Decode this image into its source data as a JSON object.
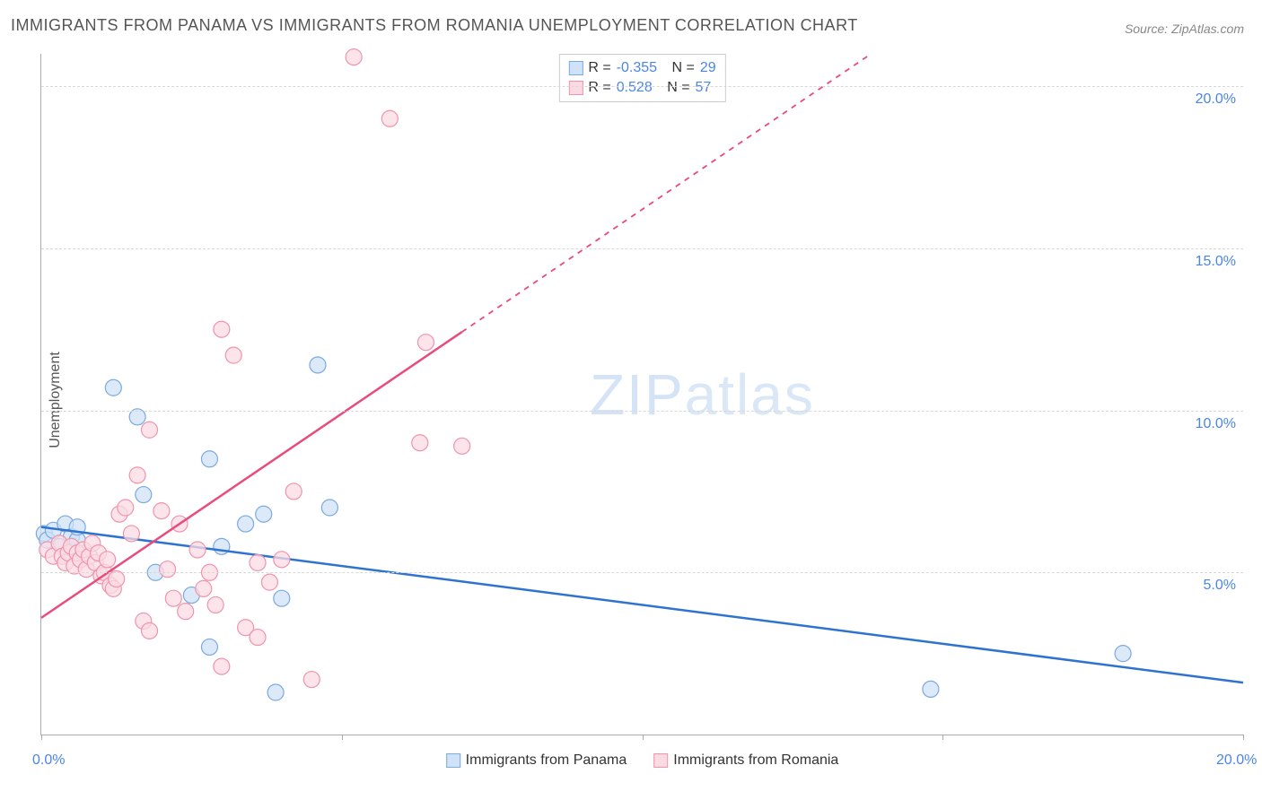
{
  "title": "IMMIGRANTS FROM PANAMA VS IMMIGRANTS FROM ROMANIA UNEMPLOYMENT CORRELATION CHART",
  "source": "Source: ZipAtlas.com",
  "ylabel": "Unemployment",
  "watermark_zip": "ZIP",
  "watermark_atlas": "atlas",
  "chart": {
    "type": "scatter",
    "xlim": [
      0,
      20
    ],
    "ylim": [
      0,
      21
    ],
    "xticks": [
      0,
      5,
      10,
      15,
      20
    ],
    "xtick_labels": [
      "0.0%",
      "",
      "",
      "",
      "20.0%"
    ],
    "yticks": [
      5,
      10,
      15,
      20
    ],
    "ytick_labels": [
      "5.0%",
      "10.0%",
      "15.0%",
      "20.0%"
    ],
    "grid_color": "#d8d8d8",
    "background_color": "#ffffff",
    "series": [
      {
        "name": "Immigrants from Panama",
        "marker_fill": "#cfe2f7",
        "marker_stroke": "#7ba9e0",
        "line_color": "#2f73d1",
        "swatch_fill": "#cfe2f7",
        "swatch_stroke": "#7ba9e0",
        "marker_radius": 9,
        "R": "-0.355",
        "N": "29",
        "trend": {
          "x1": 0,
          "y1": 6.4,
          "x2": 20,
          "y2": 1.6
        },
        "points": [
          [
            0.05,
            6.2
          ],
          [
            0.1,
            6.0
          ],
          [
            0.2,
            6.3
          ],
          [
            0.3,
            5.8
          ],
          [
            0.4,
            6.5
          ],
          [
            0.5,
            6.1
          ],
          [
            0.6,
            6.0
          ],
          [
            0.6,
            6.4
          ],
          [
            1.2,
            10.7
          ],
          [
            1.6,
            9.8
          ],
          [
            1.7,
            7.4
          ],
          [
            1.9,
            5.0
          ],
          [
            2.5,
            4.3
          ],
          [
            2.8,
            8.5
          ],
          [
            2.8,
            2.7
          ],
          [
            3.0,
            5.8
          ],
          [
            3.4,
            6.5
          ],
          [
            3.7,
            6.8
          ],
          [
            3.9,
            1.3
          ],
          [
            4.0,
            4.2
          ],
          [
            4.6,
            11.4
          ],
          [
            4.8,
            7.0
          ],
          [
            14.8,
            1.4
          ],
          [
            18.0,
            2.5
          ]
        ]
      },
      {
        "name": "Immigrants from Romania",
        "marker_fill": "#fbdbe3",
        "marker_stroke": "#ef94ac",
        "line_color": "#e94b7b",
        "swatch_fill": "#fbdbe3",
        "swatch_stroke": "#ef94ac",
        "marker_radius": 9,
        "R": "0.528",
        "N": "57",
        "trend": {
          "x1": 0,
          "y1": 3.6,
          "x2": 20,
          "y2": 28.8
        },
        "points": [
          [
            0.1,
            5.7
          ],
          [
            0.2,
            5.5
          ],
          [
            0.3,
            5.9
          ],
          [
            0.35,
            5.5
          ],
          [
            0.4,
            5.3
          ],
          [
            0.45,
            5.6
          ],
          [
            0.5,
            5.8
          ],
          [
            0.55,
            5.2
          ],
          [
            0.6,
            5.6
          ],
          [
            0.65,
            5.4
          ],
          [
            0.7,
            5.7
          ],
          [
            0.75,
            5.1
          ],
          [
            0.8,
            5.5
          ],
          [
            0.85,
            5.9
          ],
          [
            0.9,
            5.3
          ],
          [
            0.95,
            5.6
          ],
          [
            1.0,
            4.9
          ],
          [
            1.05,
            5.0
          ],
          [
            1.1,
            5.4
          ],
          [
            1.15,
            4.6
          ],
          [
            1.2,
            4.5
          ],
          [
            1.25,
            4.8
          ],
          [
            1.3,
            6.8
          ],
          [
            1.4,
            7.0
          ],
          [
            1.5,
            6.2
          ],
          [
            1.6,
            8.0
          ],
          [
            1.7,
            3.5
          ],
          [
            1.8,
            3.2
          ],
          [
            1.8,
            9.4
          ],
          [
            2.0,
            6.9
          ],
          [
            2.1,
            5.1
          ],
          [
            2.2,
            4.2
          ],
          [
            2.3,
            6.5
          ],
          [
            2.4,
            3.8
          ],
          [
            2.6,
            5.7
          ],
          [
            2.7,
            4.5
          ],
          [
            2.8,
            5.0
          ],
          [
            2.9,
            4.0
          ],
          [
            3.0,
            2.1
          ],
          [
            3.0,
            12.5
          ],
          [
            3.2,
            11.7
          ],
          [
            3.4,
            3.3
          ],
          [
            3.6,
            5.3
          ],
          [
            3.6,
            3.0
          ],
          [
            3.8,
            4.7
          ],
          [
            4.0,
            5.4
          ],
          [
            4.2,
            7.5
          ],
          [
            4.5,
            1.7
          ],
          [
            5.2,
            20.9
          ],
          [
            5.8,
            19.0
          ],
          [
            6.3,
            9.0
          ],
          [
            6.4,
            12.1
          ],
          [
            7.0,
            8.9
          ]
        ]
      }
    ],
    "legend_top": {
      "r_label": "R =",
      "n_label": "N ="
    },
    "legend_bottom": [
      "Immigrants from Panama",
      "Immigrants from Romania"
    ]
  },
  "colors": {
    "title": "#555555",
    "source": "#888888",
    "tick": "#4a86e8",
    "axis": "#aaaaaa"
  }
}
